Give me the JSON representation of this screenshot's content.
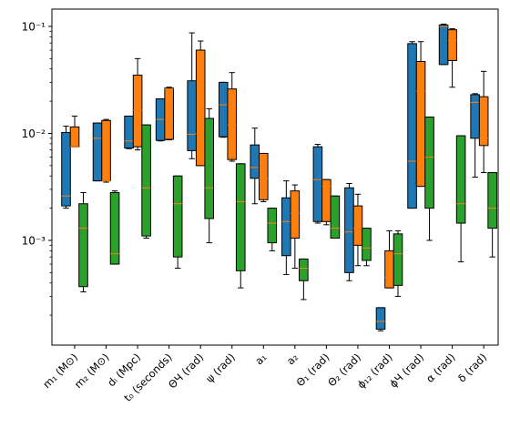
{
  "chart_data": {
    "type": "box",
    "y_scale": "log",
    "ylim": [
      0.000105,
      0.145
    ],
    "y_tick_labels": [
      "10⁻³",
      "10⁻²",
      "10⁻¹"
    ],
    "grid": false,
    "legend": "none",
    "colors": {
      "series1": "#1f77b4",
      "series2": "#ff7f0e",
      "series3": "#2ca02c",
      "median": "#ff7f0e",
      "whisker": "#000000"
    },
    "categories": [
      "m₁ (M⊙)",
      "m₂ (M⊙)",
      "dₗ (Mpc)",
      "t₀ (seconds)",
      "ΘЧ (rad)",
      "ψ (rad)",
      "a₁",
      "a₂",
      "Θ₁ (rad)",
      "Θ₂ (rad)",
      "ϕ₁₂ (rad)",
      "ϕЧ (rad)",
      "α (rad)",
      "δ (rad)"
    ],
    "series": [
      {
        "boxes": [
          {
            "wlo": 0.002,
            "q1": 0.0021,
            "med": 0.0026,
            "q3": 0.0102,
            "whi": 0.0117
          },
          {
            "wlo": 0.0036,
            "q1": 0.0036,
            "med": 0.009,
            "q3": 0.0125,
            "whi": 0.0125
          },
          {
            "wlo": 0.0072,
            "q1": 0.0073,
            "med": 0.0085,
            "q3": 0.0145,
            "whi": 0.0145
          },
          {
            "wlo": 0.0085,
            "q1": 0.0086,
            "med": 0.0135,
            "q3": 0.021,
            "whi": 0.021
          },
          {
            "wlo": 0.0058,
            "q1": 0.0069,
            "med": 0.0098,
            "q3": 0.031,
            "whi": 0.087
          },
          {
            "wlo": 0.0092,
            "q1": 0.0093,
            "med": 0.0185,
            "q3": 0.03,
            "whi": 0.03
          },
          {
            "wlo": 0.0022,
            "q1": 0.0038,
            "med": 0.0048,
            "q3": 0.0078,
            "whi": 0.0112
          },
          {
            "wlo": 0.00048,
            "q1": 0.00072,
            "med": 0.0015,
            "q3": 0.0025,
            "whi": 0.0036
          },
          {
            "wlo": 0.00145,
            "q1": 0.0015,
            "med": 0.0037,
            "q3": 0.0075,
            "whi": 0.0079
          },
          {
            "wlo": 0.00042,
            "q1": 0.0005,
            "med": 0.0012,
            "q3": 0.0031,
            "whi": 0.0034
          },
          {
            "wlo": 0.000143,
            "q1": 0.000148,
            "med": 0.000175,
            "q3": 0.000235,
            "whi": 0.000235
          },
          {
            "wlo": 0.002,
            "q1": 0.002,
            "med": 0.0055,
            "q3": 0.069,
            "whi": 0.072
          },
          {
            "wlo": 0.044,
            "q1": 0.044,
            "med": 0.1,
            "q3": 0.103,
            "whi": 0.105
          },
          {
            "wlo": 0.0039,
            "q1": 0.009,
            "med": 0.0195,
            "q3": 0.023,
            "whi": 0.0235
          }
        ]
      },
      {
        "boxes": [
          {
            "wlo": 0.0075,
            "q1": 0.0075,
            "med": 0.0075,
            "q3": 0.0115,
            "whi": 0.0145
          },
          {
            "wlo": 0.0035,
            "q1": 0.0036,
            "med": 0.0036,
            "q3": 0.0132,
            "whi": 0.0135
          },
          {
            "wlo": 0.007,
            "q1": 0.0075,
            "med": 0.0165,
            "q3": 0.035,
            "whi": 0.05
          },
          {
            "wlo": 0.0087,
            "q1": 0.0088,
            "med": 0.026,
            "q3": 0.0265,
            "whi": 0.027
          },
          {
            "wlo": 0.005,
            "q1": 0.005,
            "med": 0.01,
            "q3": 0.06,
            "whi": 0.073
          },
          {
            "wlo": 0.0055,
            "q1": 0.0057,
            "med": 0.012,
            "q3": 0.026,
            "whi": 0.037
          },
          {
            "wlo": 0.0023,
            "q1": 0.0024,
            "med": 0.0038,
            "q3": 0.0065,
            "whi": 0.0065
          },
          {
            "wlo": 0.00055,
            "q1": 0.00105,
            "med": 0.0018,
            "q3": 0.0029,
            "whi": 0.0033
          },
          {
            "wlo": 0.0014,
            "q1": 0.0015,
            "med": 0.0032,
            "q3": 0.0037,
            "whi": 0.0037
          },
          {
            "wlo": 0.00058,
            "q1": 0.0009,
            "med": 0.0013,
            "q3": 0.0021,
            "whi": 0.0027
          },
          {
            "wlo": 0.00036,
            "q1": 0.00036,
            "med": 0.00045,
            "q3": 0.0008,
            "whi": 0.00123
          },
          {
            "wlo": 0.0032,
            "q1": 0.0032,
            "med": 0.025,
            "q3": 0.047,
            "whi": 0.072
          },
          {
            "wlo": 0.027,
            "q1": 0.048,
            "med": 0.074,
            "q3": 0.093,
            "whi": 0.095
          },
          {
            "wlo": 0.0043,
            "q1": 0.0077,
            "med": 0.009,
            "q3": 0.022,
            "whi": 0.038
          }
        ]
      },
      {
        "boxes": [
          {
            "wlo": 0.00033,
            "q1": 0.00037,
            "med": 0.0013,
            "q3": 0.0022,
            "whi": 0.0028
          },
          {
            "wlo": 0.0006,
            "q1": 0.0006,
            "med": 0.00075,
            "q3": 0.0028,
            "whi": 0.0029
          },
          {
            "wlo": 0.00105,
            "q1": 0.0011,
            "med": 0.0031,
            "q3": 0.012,
            "whi": 0.012
          },
          {
            "wlo": 0.00055,
            "q1": 0.0007,
            "med": 0.0022,
            "q3": 0.004,
            "whi": 0.004
          },
          {
            "wlo": 0.00095,
            "q1": 0.0016,
            "med": 0.0031,
            "q3": 0.0138,
            "whi": 0.017
          },
          {
            "wlo": 0.00036,
            "q1": 0.00052,
            "med": 0.0023,
            "q3": 0.0052,
            "whi": 0.0052
          },
          {
            "wlo": 0.0008,
            "q1": 0.00095,
            "med": 0.00145,
            "q3": 0.002,
            "whi": 0.002
          },
          {
            "wlo": 0.00028,
            "q1": 0.00042,
            "med": 0.00055,
            "q3": 0.00067,
            "whi": 0.00067
          },
          {
            "wlo": 0.00105,
            "q1": 0.00105,
            "med": 0.0013,
            "q3": 0.0026,
            "whi": 0.0026
          },
          {
            "wlo": 0.00058,
            "q1": 0.00065,
            "med": 0.00085,
            "q3": 0.0013,
            "whi": 0.0013
          },
          {
            "wlo": 0.0003,
            "q1": 0.00038,
            "med": 0.00075,
            "q3": 0.00115,
            "whi": 0.00123
          },
          {
            "wlo": 0.001,
            "q1": 0.002,
            "med": 0.006,
            "q3": 0.0142,
            "whi": 0.0142
          },
          {
            "wlo": 0.00063,
            "q1": 0.00145,
            "med": 0.0022,
            "q3": 0.0095,
            "whi": 0.0095
          },
          {
            "wlo": 0.0007,
            "q1": 0.0013,
            "med": 0.002,
            "q3": 0.0043,
            "whi": 0.0043
          }
        ]
      }
    ]
  }
}
